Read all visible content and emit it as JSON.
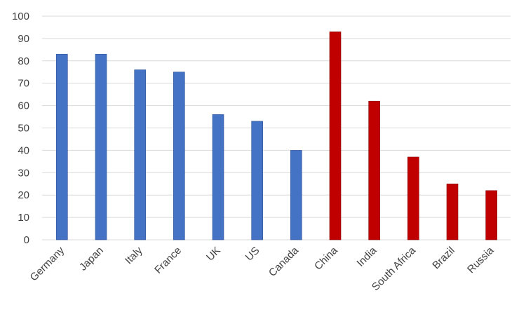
{
  "chart_data": {
    "type": "bar",
    "categories": [
      "Germany",
      "Japan",
      "Italy",
      "France",
      "UK",
      "US",
      "Canada",
      "China",
      "India",
      "South Africa",
      "Brazil",
      "Russia"
    ],
    "values": [
      83,
      83,
      76,
      75,
      56,
      53,
      40,
      93,
      62,
      37,
      25,
      22
    ],
    "bar_colors": [
      "#4472C4",
      "#4472C4",
      "#4472C4",
      "#4472C4",
      "#4472C4",
      "#4472C4",
      "#4472C4",
      "#C00000",
      "#C00000",
      "#C00000",
      "#C00000",
      "#C00000"
    ],
    "title": "",
    "xlabel": "",
    "ylabel": "",
    "ylim": [
      0,
      100
    ],
    "yticks": [
      0,
      10,
      20,
      30,
      40,
      50,
      60,
      70,
      80,
      90,
      100
    ],
    "grid": true,
    "legend": "none"
  }
}
